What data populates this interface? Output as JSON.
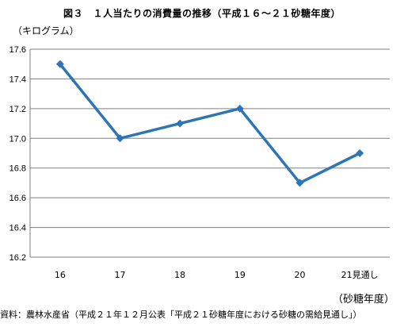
{
  "title": "図３　１人当たりの消費量の推移（平成１６～２１砂糖年度）",
  "unit_label": "（キログラム）",
  "x_unit_label": "（砂糖年度）",
  "source": "資料：農林水産省（平成２１年１２月公表「平成２１砂糖年度における砂糖の需給見通し」）",
  "colors": {
    "line": "#2E75B6",
    "grid": "#808080",
    "axis": "#808080"
  },
  "chart_data": {
    "type": "line",
    "title": "図３　１人当たりの消費量の推移（平成１６～２１砂糖年度）",
    "ylabel": "（キログラム）",
    "xlabel": "（砂糖年度）",
    "categories": [
      "16",
      "17",
      "18",
      "19",
      "20",
      "21見通し"
    ],
    "series": [
      {
        "values": [
          17.5,
          17.0,
          17.1,
          17.2,
          16.7,
          16.9
        ]
      }
    ],
    "ylim": [
      16.2,
      17.6
    ],
    "yticks": [
      "16.2",
      "16.4",
      "16.6",
      "16.8",
      "17.0",
      "17.2",
      "17.4",
      "17.6"
    ],
    "grid": true,
    "legend": "none",
    "marker": "diamond"
  }
}
